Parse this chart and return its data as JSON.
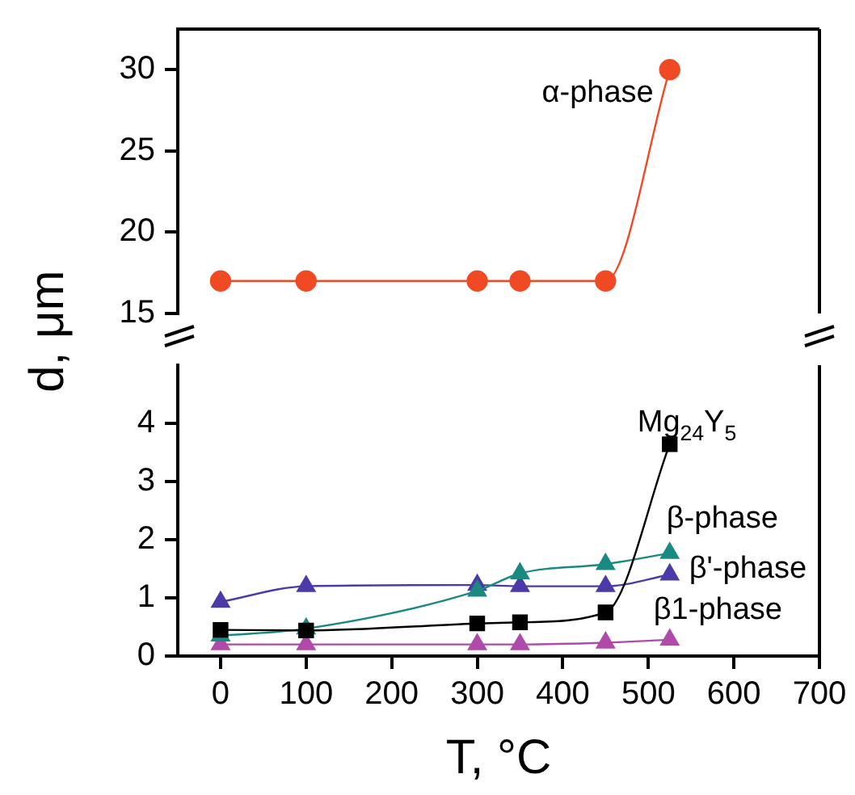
{
  "chart_data": [
    {
      "type": "line",
      "ylabel": "d, μm",
      "x": [
        0,
        100,
        300,
        350,
        450,
        525
      ],
      "xlim": [
        -50,
        700
      ],
      "ylim": [
        15,
        32.5
      ],
      "yticks": [
        15,
        20,
        25,
        30
      ],
      "tick_labels": "y",
      "grid": false,
      "legend": false,
      "marker": "circle",
      "series": [
        {
          "name": "α-phase",
          "color": "#f04a24",
          "values": [
            17,
            17,
            17,
            17,
            17,
            30
          ]
        }
      ]
    },
    {
      "type": "line",
      "xlabel": "T, °C",
      "x": [
        0,
        100,
        300,
        350,
        450,
        525
      ],
      "xlim": [
        -50,
        700
      ],
      "xticks": [
        0,
        100,
        200,
        300,
        400,
        500,
        600,
        700
      ],
      "ylim": [
        0,
        5
      ],
      "yticks": [
        0,
        1,
        2,
        3,
        4
      ],
      "grid": false,
      "legend": false,
      "series": [
        {
          "name": "Mg$_{24}$Y$_{5}$",
          "color": "#000000",
          "marker": "square",
          "values": [
            0.45,
            0.44,
            0.56,
            0.58,
            0.75,
            3.64
          ]
        },
        {
          "name": "β-phase",
          "color": "#1a8a80",
          "marker": "triangle",
          "values": [
            0.35,
            0.47,
            1.12,
            1.42,
            1.58,
            1.77
          ]
        },
        {
          "name": "β'-phase",
          "color": "#4b3aa8",
          "marker": "triangle",
          "values": [
            0.93,
            1.2,
            1.22,
            1.2,
            1.2,
            1.4
          ]
        },
        {
          "name": "β1-phase",
          "color": "#b04aa8",
          "marker": "triangle",
          "values": [
            0.2,
            0.2,
            0.2,
            0.2,
            0.23,
            0.28
          ]
        }
      ]
    }
  ]
}
